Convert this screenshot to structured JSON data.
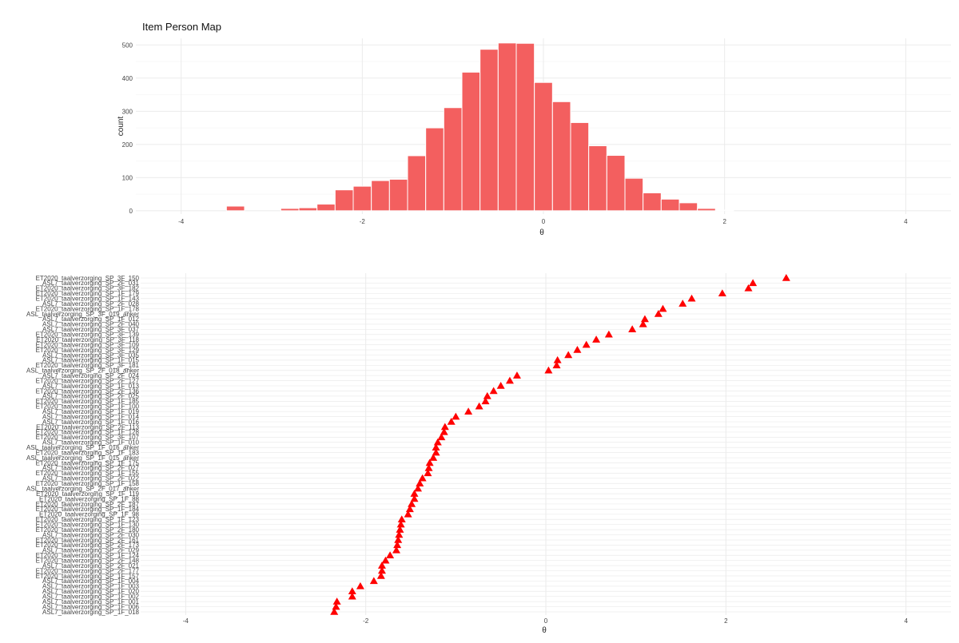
{
  "title": "Item Person Map",
  "colors": {
    "bar": "#f35f5f",
    "marker": "#ff0000",
    "grid_major": "#ebebeb",
    "grid_minor": "#f4f4f4"
  },
  "histogram": {
    "xlabel": "θ",
    "ylabel": "count",
    "xlim": [
      -4.5,
      4.5
    ],
    "ylim": [
      -10,
      520
    ],
    "xticks": [
      -4,
      -2,
      0,
      2,
      4
    ],
    "yticks": [
      0,
      100,
      200,
      300,
      400,
      500
    ],
    "grid": true
  },
  "itemmap": {
    "xlabel": "θ",
    "xlim": [
      -4.5,
      4.5
    ],
    "xticks": [
      -4,
      -2,
      0,
      2,
      4
    ],
    "grid": true
  },
  "chart_data": [
    {
      "type": "bar",
      "subtype": "histogram",
      "title": "Item Person Map",
      "xlabel": "θ",
      "ylabel": "count",
      "bin_width": 0.2,
      "bin_centers": [
        -3.4,
        -2.8,
        -2.6,
        -2.4,
        -2.2,
        -2.0,
        -1.8,
        -1.6,
        -1.4,
        -1.2,
        -1.0,
        -0.8,
        -0.6,
        -0.4,
        -0.2,
        0.0,
        0.2,
        0.4,
        0.6,
        0.8,
        1.0,
        1.2,
        1.4,
        1.6,
        1.8,
        2.0,
        2.2,
        2.4,
        2.6,
        2.8
      ],
      "values": [
        14,
        7,
        9,
        20,
        63,
        74,
        91,
        95,
        166,
        250,
        311,
        418,
        487,
        506,
        505,
        387,
        329,
        266,
        196,
        167,
        98,
        54,
        35,
        24,
        7,
        2,
        0,
        0,
        0,
        0
      ]
    },
    {
      "type": "scatter",
      "marker": "triangle",
      "xlabel": "θ",
      "categories": [
        "ET2020_taalverzorging_SP_3F_150",
        "ASL7_taalverzorging_SP_2F_031",
        "ET2020_taalverzorging_SP_3F_182",
        "ET2020_taalverzorging_SP_1F_179",
        "ET2020_taalverzorging_SP_1F_143",
        "ASL7_taalverzorging_SP_2F_028",
        "ET2020_taalverzorging_SP_1F_178",
        "ASL_taalverzorging_SP_3F_019_anker",
        "ASL7_taalverzorging_SP_1F_012",
        "ASL7_taalverzorging_SP_2F_040",
        "ASL7_taalverzorging_SP_3F_037",
        "ET2020_taalverzorging_SP_3F_139",
        "ET2020_taalverzorging_SP_3F_118",
        "ET2020_taalverzorging_SP_3F_109",
        "ET2020_taalverzorging_SP_3F_129",
        "ASL7_taalverzorging_SP_3F_035",
        "ASL7_taalverzorging_SP_1F_015",
        "ET2020_taalverzorging_SP_3F_181",
        "ASL_taalverzorging_SP_2F_018_anker",
        "ASL7_taalverzorging_SP_2F_024",
        "ET2020_taalverzorging_SP_2F_127",
        "ASL7_taalverzorging_SP_1F_013",
        "ET2020_taalverzorging_SP_2F_136",
        "ASL7_taalverzorging_SP_2F_025",
        "ET2020_taalverzorging_SP_1F_185",
        "ET2020_taalverzorging_SP_1F_100",
        "ASL7_taalverzorging_SP_1F_019",
        "ASL7_taalverzorging_SP_1F_014",
        "ASL7_taalverzorging_SP_1F_016",
        "ET2020_taalverzorging_SP_2F_113",
        "ET2020_taalverzorging_SP_1F_128",
        "ET2020_taalverzorging_SP_3F_107",
        "ASL7_taalverzorging_SP_1F_010",
        "ASL_taalverzorging_SP_1F_016_anker",
        "ET2020_taalverzorging_SP_1F_183",
        "ASL_taalverzorging_SP_1F_015_anker",
        "ET2020_taalverzorging_SP_1F_175",
        "ASL7_taalverzorging_SP_2F_027",
        "ET2020_taalverzorging_SP_1F_155",
        "ASL7_taalverzorging_SP_2F_022",
        "ET2020_taalverzorging_SP_1F_158",
        "ASL_taalverzorging_SP_2F_017_anker",
        "ET2020_taalverzorging_SP_1F_119",
        "ET2020_taalverzorging_SP_1F_88",
        "ET2020_taalverzorging_SP_2F_187",
        "ET2020_taalverzorging_SP_1F_184",
        "ET2020_taalverzorging_SP_1F_98",
        "ET2020_taalverzorging_SP_1F_123",
        "ET2020_taalverzorging_SP_1F_130",
        "ET2020_taalverzorging_SP_2F_180",
        "ASL7_taalverzorging_SP_2F_030",
        "ET2020_taalverzorging_SP_2F_161",
        "ET2020_taalverzorging_SP_2F_173",
        "ASL7_taalverzorging_SP_2F_029",
        "ET2020_taalverzorging_SP_1F_124",
        "ET2020_taalverzorging_SP_2F_148",
        "ASL7_taalverzorging_SP_2F_021",
        "ET2020_taalverzorging_SP_2F_177",
        "ET2020_taalverzorging_SP_1F_157",
        "ASL7_taalverzorging_SP_1F_004",
        "ASL7_taalverzorging_SP_1F_003",
        "ASL7_taalverzorging_SP_1F_020",
        "ASL7_taalverzorging_SP_1F_002",
        "ASL7_taalverzorging_SP_1F_001",
        "ASL7_taalverzorging_SP_1F_006",
        "ASL7_taalverzorging_SP_1F_018"
      ],
      "values": [
        2.67,
        2.3,
        2.25,
        1.96,
        1.62,
        1.52,
        1.3,
        1.25,
        1.1,
        1.08,
        0.96,
        0.7,
        0.56,
        0.45,
        0.35,
        0.25,
        0.13,
        0.12,
        0.03,
        -0.32,
        -0.4,
        -0.5,
        -0.58,
        -0.65,
        -0.67,
        -0.74,
        -0.86,
        -1.0,
        -1.05,
        -1.12,
        -1.13,
        -1.16,
        -1.2,
        -1.22,
        -1.22,
        -1.25,
        -1.29,
        -1.3,
        -1.31,
        -1.37,
        -1.4,
        -1.42,
        -1.46,
        -1.46,
        -1.49,
        -1.51,
        -1.53,
        -1.6,
        -1.61,
        -1.62,
        -1.63,
        -1.64,
        -1.65,
        -1.66,
        -1.73,
        -1.78,
        -1.82,
        -1.82,
        -1.83,
        -1.91,
        -2.06,
        -2.15,
        -2.15,
        -2.32,
        -2.33,
        -2.35
      ]
    }
  ]
}
